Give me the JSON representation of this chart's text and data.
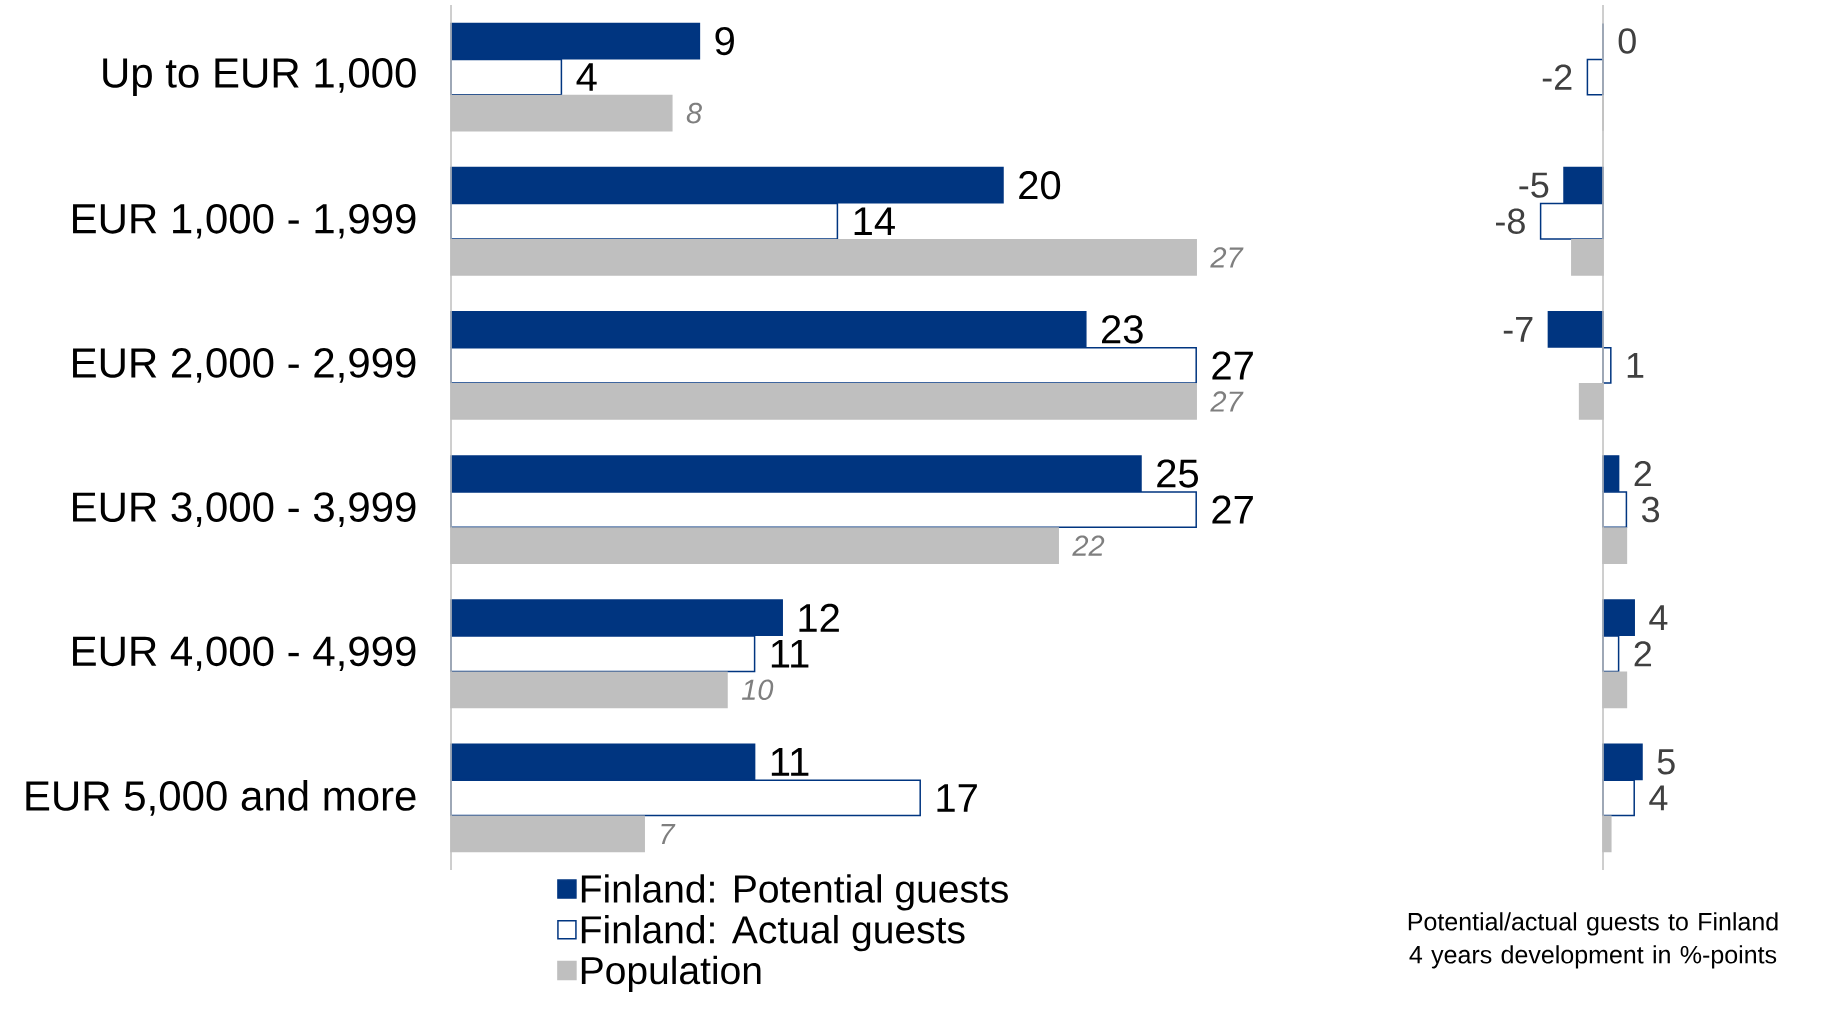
{
  "chart_data": [
    {
      "type": "bar",
      "orientation": "horizontal",
      "categories": [
        "Up to EUR 1,000",
        "EUR 1,000 - 1,999",
        "EUR 2,000 - 2,999",
        "EUR 3,000 - 3,999",
        "EUR 4,000 - 4,999",
        "EUR 5,000 and more"
      ],
      "series": [
        {
          "name": "Finland: Potential guests",
          "color": "#003580",
          "values": [
            9,
            20,
            23,
            25,
            12,
            11
          ]
        },
        {
          "name": "Finland: Actual guests",
          "color": "#ffffff",
          "values": [
            4,
            14,
            27,
            27,
            11,
            17
          ]
        },
        {
          "name": "Population",
          "color": "#bfbfbf",
          "values": [
            8,
            27,
            27,
            22,
            10,
            7
          ]
        }
      ],
      "data_labels": true,
      "legend": "bottom"
    },
    {
      "type": "bar",
      "orientation": "horizontal",
      "categories": [
        null,
        null,
        null,
        null,
        null,
        null
      ],
      "xlabel": "Potential/actual guests to Finland 4 years development in %-points",
      "series": [
        {
          "color": "#003580",
          "values": [
            0,
            -5,
            -7,
            2,
            4,
            5
          ],
          "value_labels": [
            "0",
            "-5",
            "-7",
            "2",
            "4",
            "5"
          ]
        },
        {
          "color": "#ffffff",
          "values": [
            -2,
            -8,
            1,
            3,
            2,
            4
          ],
          "value_labels": [
            "-2",
            "-8",
            "1",
            "3",
            "2",
            "4"
          ]
        },
        {
          "color": "#bfbfbf",
          "values": [
            0,
            -4,
            -3,
            3,
            3,
            1
          ],
          "value_labels": [
            null,
            null,
            null,
            null,
            null,
            null
          ]
        }
      ]
    }
  ]
}
